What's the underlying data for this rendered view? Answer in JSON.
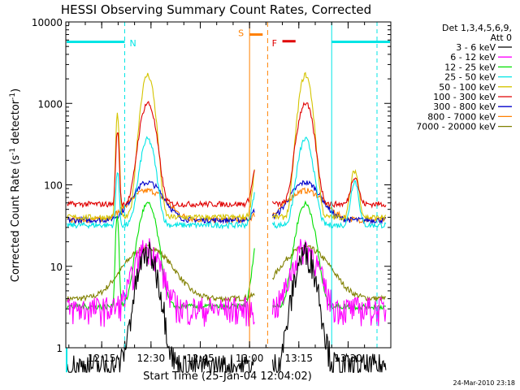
{
  "chart_data": {
    "type": "line",
    "title": "HESSI Observing Summary Count Rates, Corrected",
    "xlabel": "Start Time (25-Jan-04 12:04:02)",
    "ylabel_main": "Corrected Count Rate (s",
    "ylabel_sup1": "-1",
    "ylabel_mid": " detector",
    "ylabel_sup2": "-1",
    "ylabel_end": ")",
    "timestamp": "24-Mar-2010 23:18",
    "x_scale": "linear",
    "y_scale": "log",
    "xlim": [
      "12:04:02",
      "13:43:00"
    ],
    "ylim": [
      1,
      10000
    ],
    "x_ticks": [
      {
        "label": "12:15",
        "minutes": 15
      },
      {
        "label": "12:30",
        "minutes": 30
      },
      {
        "label": "12:45",
        "minutes": 45
      },
      {
        "label": "13:00",
        "minutes": 60
      },
      {
        "label": "13:15",
        "minutes": 75
      },
      {
        "label": "13:30",
        "minutes": 90
      }
    ],
    "y_ticks": [
      {
        "label": "1",
        "value": 1
      },
      {
        "label": "10",
        "value": 10
      },
      {
        "label": "100",
        "value": 100
      },
      {
        "label": "1000",
        "value": 1000
      },
      {
        "label": "10000",
        "value": 10000
      }
    ],
    "legend_header": [
      "Det 1,3,4,5,6,9,",
      "Att 0"
    ],
    "legend_placement": "right",
    "series": [
      {
        "name": "3 - 6 keV",
        "color": "#000000"
      },
      {
        "name": "6 - 12 keV",
        "color": "#ff00ff"
      },
      {
        "name": "12 - 25 keV",
        "color": "#00e000"
      },
      {
        "name": "25 - 50 keV",
        "color": "#00e5e5"
      },
      {
        "name": "50 - 100 keV",
        "color": "#d4c400"
      },
      {
        "name": "100 - 300 keV",
        "color": "#e00000"
      },
      {
        "name": "300 - 800 keV",
        "color": "#0000cc"
      },
      {
        "name": "800 - 7000 keV",
        "color": "#ff8000"
      },
      {
        "name": "7000 - 20000 keV",
        "color": "#808000"
      }
    ],
    "flags": [
      {
        "label": "N",
        "color": "#00e5e5",
        "segments": [
          [
            "12:04:02",
            "12:22:00"
          ],
          [
            "13:25:00",
            "13:43:00"
          ]
        ]
      },
      {
        "label": "S",
        "color": "#ff8000",
        "segments": [
          [
            "13:00:00",
            "13:04:00"
          ]
        ]
      },
      {
        "label": "F",
        "color": "#e00000",
        "segments": [
          [
            "13:10:00",
            "13:14:00"
          ]
        ]
      }
    ]
  }
}
